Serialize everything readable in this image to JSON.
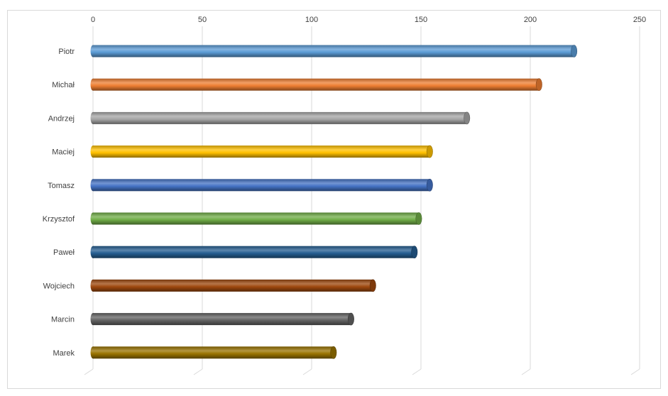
{
  "chart_data": {
    "type": "bar",
    "orientation": "horizontal",
    "style": "3d-cylinder",
    "title": "",
    "xlabel": "",
    "ylabel": "",
    "xlim": [
      0,
      250
    ],
    "x_ticks": [
      "0",
      "50",
      "100",
      "150",
      "200",
      "250"
    ],
    "x_axis_position": "top",
    "grid": true,
    "legend": "none",
    "categories": [
      "Piotr",
      "Michał",
      "Andrzej",
      "Maciej",
      "Tomasz",
      "Krzysztof",
      "Paweł",
      "Wojciech",
      "Marcin",
      "Marek"
    ],
    "values": [
      220,
      204,
      171,
      154,
      154,
      149,
      147,
      128,
      118,
      110
    ],
    "colors": [
      "#5b9bd5",
      "#ed7d31",
      "#a5a5a5",
      "#ffc000",
      "#4472c4",
      "#70ad47",
      "#255e91",
      "#9e480e",
      "#636363",
      "#997300"
    ]
  }
}
